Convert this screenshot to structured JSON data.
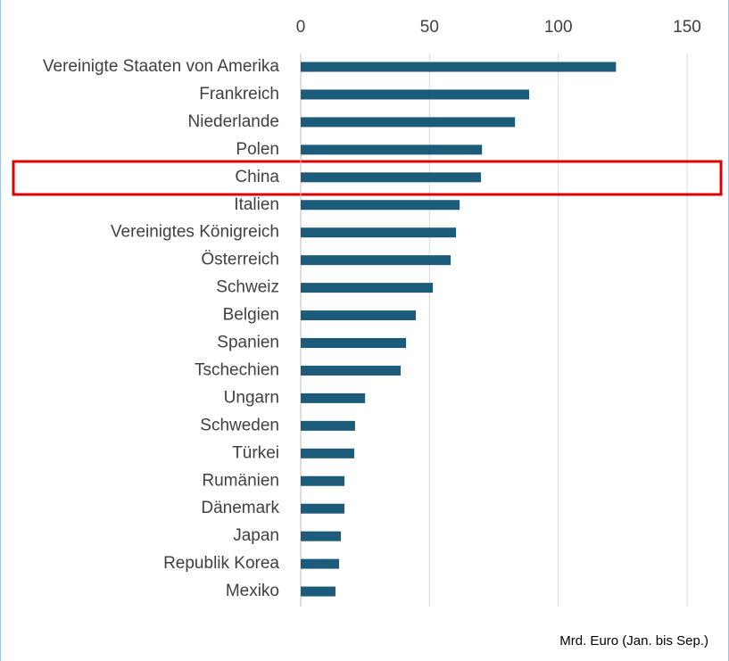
{
  "chart_data": {
    "type": "barh",
    "axis_label": "Mrd. Euro (Jan. bis Sep.)",
    "categories": [
      "Vereinigte Staaten von Amerika",
      "Frankreich",
      "Niederlande",
      "Polen",
      "China",
      "Italien",
      "Vereinigtes Königreich",
      "Österreich",
      "Schweiz",
      "Belgien",
      "Spanien",
      "Tschechien",
      "Ungarn",
      "Schweden",
      "Türkei",
      "Rumänien",
      "Dänemark",
      "Japan",
      "Republik Korea",
      "Mexiko"
    ],
    "values": [
      122.4,
      88.7,
      83.2,
      70.4,
      70.0,
      61.7,
      60.3,
      58.2,
      51.3,
      44.7,
      40.9,
      38.8,
      25.0,
      21.1,
      20.8,
      17.0,
      17.0,
      15.6,
      14.9,
      13.5
    ],
    "color": "#1c5b7a",
    "xlim": [
      0,
      150
    ],
    "xticks": [
      0,
      50,
      100,
      150
    ],
    "grid": true
  }
}
